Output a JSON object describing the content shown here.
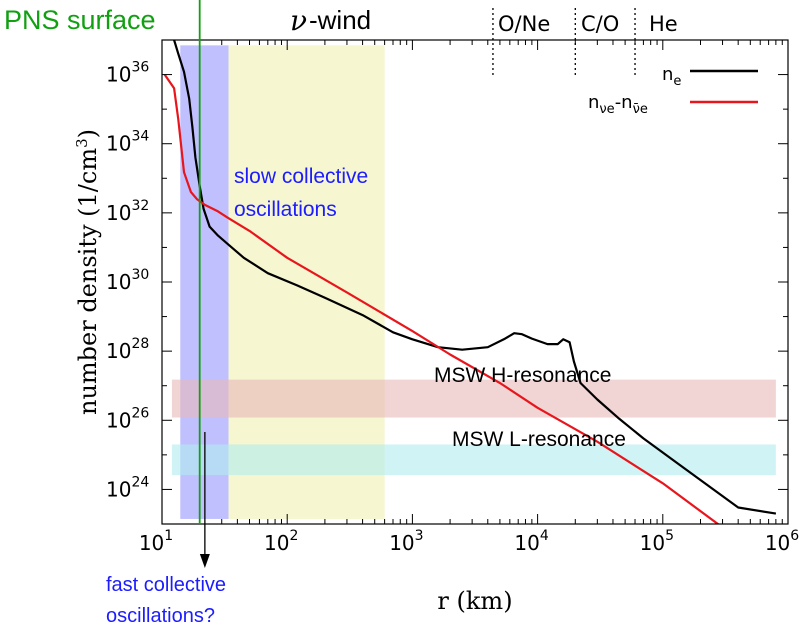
{
  "chart_data": {
    "type": "line",
    "xlabel": "r (km)",
    "ylabel": "number density (1/cm",
    "ylabel_sup": "3",
    "ylabel_end": ")",
    "x_scale": "log",
    "y_scale": "log",
    "xlim": [
      10,
      1000000
    ],
    "ylim": [
      1e+23,
      1e+37
    ],
    "grid": false,
    "legend_position": "top-right",
    "x_ticks": [
      {
        "value": 10,
        "base": "10",
        "exp": "1"
      },
      {
        "value": 100,
        "base": "10",
        "exp": "2"
      },
      {
        "value": 1000,
        "base": "10",
        "exp": "3"
      },
      {
        "value": 10000,
        "base": "10",
        "exp": "4"
      },
      {
        "value": 100000,
        "base": "10",
        "exp": "5"
      },
      {
        "value": 1000000,
        "base": "10",
        "exp": "6"
      }
    ],
    "y_ticks": [
      {
        "value": 1e+24,
        "base": "10",
        "exp": "24"
      },
      {
        "value": 1e+26,
        "base": "10",
        "exp": "26"
      },
      {
        "value": 1e+28,
        "base": "10",
        "exp": "28"
      },
      {
        "value": 1e+30,
        "base": "10",
        "exp": "30"
      },
      {
        "value": 1e+32,
        "base": "10",
        "exp": "32"
      },
      {
        "value": 1e+34,
        "base": "10",
        "exp": "34"
      },
      {
        "value": 1e+36,
        "base": "10",
        "exp": "36"
      }
    ],
    "series": [
      {
        "name": "n_e",
        "legend_main": "n",
        "legend_sub": "e",
        "color": "#000000",
        "points": [
          [
            12.5,
            1e+37
          ],
          [
            13.5,
            4e+36
          ],
          [
            15,
            1.2e+36
          ],
          [
            16.5,
            2e+35
          ],
          [
            17.5,
            3e+34
          ],
          [
            18.5,
            4e+33
          ],
          [
            20,
            6e+32
          ],
          [
            21.5,
            1.3e+32
          ],
          [
            24,
            4e+31
          ],
          [
            28,
            2.2e+31
          ],
          [
            34,
            1.2e+31
          ],
          [
            45,
            5e+30
          ],
          [
            70,
            1.8e+30
          ],
          [
            120,
            8e+29
          ],
          [
            200,
            3.5e+29
          ],
          [
            400,
            1.1e+29
          ],
          [
            700,
            3.5e+28
          ],
          [
            1000,
            2.2e+28
          ],
          [
            1600,
            1.3e+28
          ],
          [
            2500,
            1.1e+28
          ],
          [
            4000,
            1.3e+28
          ],
          [
            5500,
            2.3e+28
          ],
          [
            6500,
            3.3e+28
          ],
          [
            7500,
            3.1e+28
          ],
          [
            9000,
            2.3e+28
          ],
          [
            12000,
            1.6e+28
          ],
          [
            14500,
            1.6e+28
          ],
          [
            16000,
            2.2e+28
          ],
          [
            18000,
            1.8e+28
          ],
          [
            19500,
            5e+27
          ],
          [
            22000,
            1.2e+27
          ],
          [
            30000,
            4e+26
          ],
          [
            45000,
            1.1e+26
          ],
          [
            70000,
            3e+25
          ],
          [
            150000,
            4e+24
          ],
          [
            400000,
            3e+23
          ],
          [
            800000,
            2e+23
          ]
        ]
      },
      {
        "name": "n_νe - n_ν̄e",
        "legend_main": "n",
        "legend_sub": "νe",
        "legend_mid": "-n",
        "legend_sub2": "ν̄e",
        "color": "#e8161c",
        "points": [
          [
            10.5,
            1e+36
          ],
          [
            12.5,
            4e+35
          ],
          [
            13.5,
            5e+34
          ],
          [
            15,
            1.5e+33
          ],
          [
            17,
            4e+32
          ],
          [
            19,
            2.5e+32
          ],
          [
            22,
            1.7e+32
          ],
          [
            28,
            1.1e+32
          ],
          [
            34,
            7e+31
          ],
          [
            50,
            3e+31
          ],
          [
            100,
            5e+30
          ],
          [
            300,
            5e+29
          ],
          [
            1000,
            3.8e+28
          ],
          [
            2000,
            8e+27
          ],
          [
            5000,
            1.2e+27
          ],
          [
            10000,
            2.3e+26
          ],
          [
            30000,
            2.4e+25
          ],
          [
            100000,
            1.5e+24
          ],
          [
            300000,
            8e+22
          ]
        ]
      }
    ],
    "regions": [
      {
        "name": "pns-band",
        "color": "#9696ff",
        "opacity": 0.6,
        "x": [
          14,
          34
        ],
        "y": [
          1.4e+23,
          7e+36
        ]
      },
      {
        "name": "wind-band",
        "color": "#f5f5c8",
        "opacity": 0.85,
        "x": [
          34,
          600
        ],
        "y": [
          1.4e+23,
          7e+36
        ]
      },
      {
        "name": "h-resonance-band",
        "color": "#e8b8b8",
        "opacity": 0.6,
        "x": [
          12,
          800000
        ],
        "y": [
          1.2e+26,
          1.5e+27
        ]
      },
      {
        "name": "l-resonance-band",
        "color": "#b0ecee",
        "opacity": 0.6,
        "x": [
          12,
          800000
        ],
        "y": [
          2.6e+24,
          2e+25
        ]
      }
    ],
    "pns_surface_r": 20,
    "shell_boundaries_r": [
      4400,
      20000,
      60000
    ],
    "annotations": {
      "pns_surface": "PNS surface",
      "wind_nu": "ν",
      "wind_rest": "-wind",
      "shells": [
        "O/Ne",
        "C/O",
        "He"
      ],
      "slow_line1": "slow collective",
      "slow_line2": "oscillations",
      "fast_line1": "fast collective",
      "fast_line2": "oscillations?",
      "msw_h": "MSW H-resonance",
      "msw_l": "MSW L-resonance"
    },
    "colors": {
      "pns_green": "#11a011",
      "annotation_blue": "#1c1cff",
      "axis": "#000000"
    }
  }
}
